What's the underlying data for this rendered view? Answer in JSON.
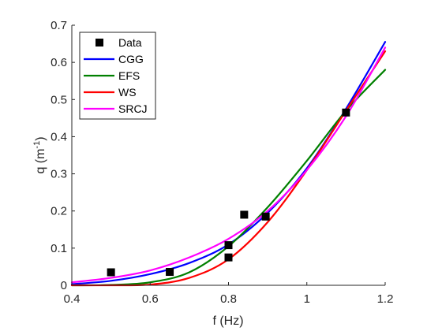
{
  "chart_data": {
    "type": "line",
    "xlabel": "f (Hz)",
    "ylabel": {
      "base": "q (m",
      "sup": "-1",
      "close": ")"
    },
    "xlim": [
      0.4,
      1.2
    ],
    "ylim": [
      0,
      0.7
    ],
    "xticks": [
      "0.4",
      "0.6",
      "0.8",
      "1",
      "1.2"
    ],
    "yticks": [
      "0",
      "0.1",
      "0.2",
      "0.3",
      "0.4",
      "0.5",
      "0.6",
      "0.7"
    ],
    "grid": false,
    "legend_position": "top-left",
    "series": [
      {
        "name": "Data",
        "kind": "markers",
        "color": "#000000",
        "x": [
          0.5,
          0.65,
          0.8,
          0.8,
          0.84,
          0.895,
          1.1
        ],
        "y": [
          0.035,
          0.036,
          0.108,
          0.075,
          0.19,
          0.185,
          0.465
        ]
      },
      {
        "name": "CGG",
        "kind": "line",
        "color": "#0000ff",
        "x": [
          0.4,
          0.5,
          0.6,
          0.7,
          0.8,
          0.9,
          1.0,
          1.1,
          1.2
        ],
        "y": [
          0.003,
          0.012,
          0.03,
          0.06,
          0.11,
          0.195,
          0.315,
          0.475,
          0.655
        ]
      },
      {
        "name": "EFS",
        "kind": "line",
        "color": "#008000",
        "x": [
          0.4,
          0.5,
          0.6,
          0.7,
          0.8,
          0.9,
          1.0,
          1.1,
          1.2
        ],
        "y": [
          0.0,
          0.001,
          0.008,
          0.035,
          0.105,
          0.21,
          0.335,
          0.47,
          0.58
        ]
      },
      {
        "name": "WS",
        "kind": "line",
        "color": "#ff0000",
        "x": [
          0.4,
          0.5,
          0.6,
          0.7,
          0.8,
          0.9,
          1.0,
          1.1,
          1.2
        ],
        "y": [
          0.0,
          0.0,
          0.002,
          0.02,
          0.07,
          0.17,
          0.31,
          0.47,
          0.63
        ]
      },
      {
        "name": "SRCJ",
        "kind": "line",
        "color": "#ff00ff",
        "x": [
          0.4,
          0.5,
          0.6,
          0.7,
          0.8,
          0.9,
          1.0,
          1.1,
          1.2
        ],
        "y": [
          0.008,
          0.02,
          0.04,
          0.075,
          0.125,
          0.2,
          0.31,
          0.455,
          0.64
        ]
      }
    ]
  }
}
